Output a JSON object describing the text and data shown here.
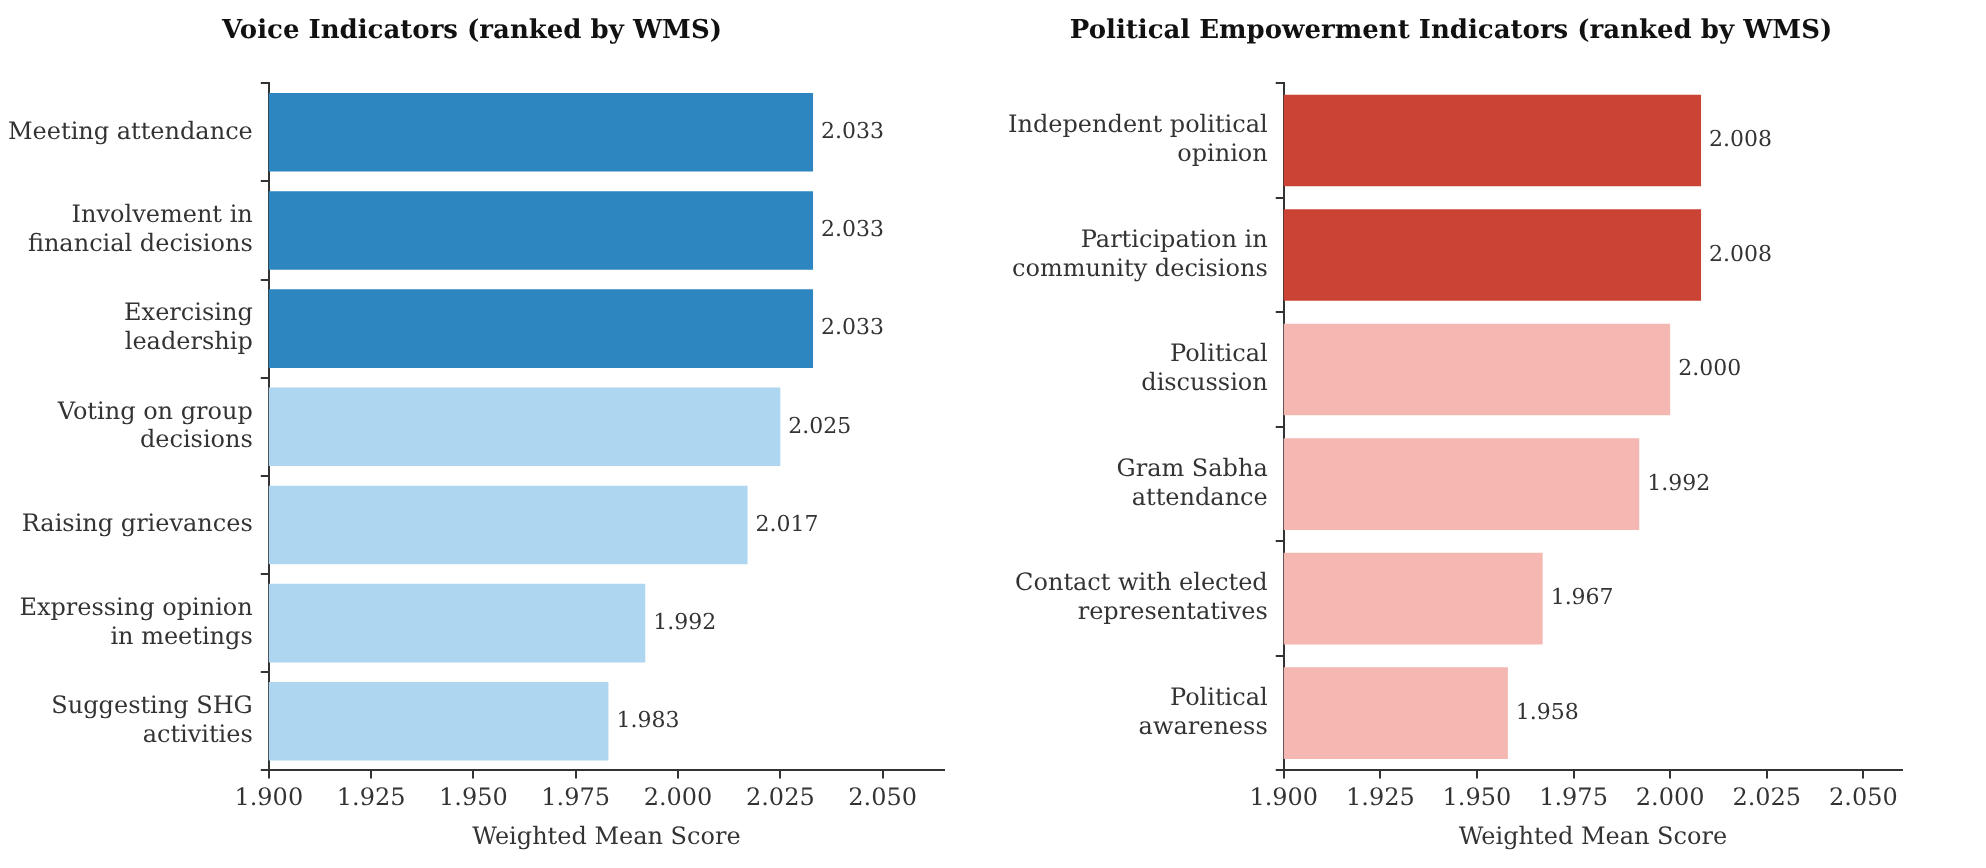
{
  "chart_data": [
    {
      "type": "bar",
      "orientation": "horizontal",
      "title": "Voice Indicators (ranked by WMS)",
      "xlabel": "Weighted Mean Score",
      "categories": [
        "Meeting attendance",
        "Involvement in\nfinancial decisions",
        "Exercising\nleadership",
        "Voting on group\ndecisions",
        "Raising grievances",
        "Expressing opinion\nin meetings",
        "Suggesting SHG\nactivities"
      ],
      "values": [
        2.033,
        2.033,
        2.033,
        2.025,
        2.017,
        1.992,
        1.983
      ],
      "value_labels": [
        "2.033",
        "2.033",
        "2.033",
        "2.025",
        "2.017",
        "1.992",
        "1.983"
      ],
      "colors": [
        "#2e86c1",
        "#2e86c1",
        "#2e86c1",
        "#aed6f1",
        "#aed6f1",
        "#aed6f1",
        "#aed6f1"
      ],
      "xlim": [
        1.9,
        2.065
      ],
      "xticks": [
        {
          "value": 1.9,
          "label": "1.900"
        },
        {
          "value": 1.925,
          "label": "1.925"
        },
        {
          "value": 1.95,
          "label": "1.950"
        },
        {
          "value": 1.975,
          "label": "1.975"
        },
        {
          "value": 2.0,
          "label": "2.000"
        },
        {
          "value": 2.025,
          "label": "2.025"
        },
        {
          "value": 2.05,
          "label": "2.050"
        }
      ],
      "grid": false,
      "legend": false
    },
    {
      "type": "bar",
      "orientation": "horizontal",
      "title": "Political Empowerment Indicators (ranked by WMS)",
      "xlabel": "Weighted Mean Score",
      "categories": [
        "Independent political\nopinion",
        "Participation in\ncommunity decisions",
        "Political\ndiscussion",
        "Gram Sabha\nattendance",
        "Contact with elected\nrepresentatives",
        "Political\nawareness"
      ],
      "values": [
        2.008,
        2.008,
        2.0,
        1.992,
        1.967,
        1.958
      ],
      "value_labels": [
        "2.008",
        "2.008",
        "2.000",
        "1.992",
        "1.967",
        "1.958"
      ],
      "colors": [
        "#cb4335",
        "#cb4335",
        "#f5b7b1",
        "#f5b7b1",
        "#f5b7b1",
        "#f5b7b1"
      ],
      "xlim": [
        1.9,
        2.06
      ],
      "xticks": [
        {
          "value": 1.9,
          "label": "1.900"
        },
        {
          "value": 1.925,
          "label": "1.925"
        },
        {
          "value": 1.95,
          "label": "1.950"
        },
        {
          "value": 1.975,
          "label": "1.975"
        },
        {
          "value": 2.0,
          "label": "2.000"
        },
        {
          "value": 2.025,
          "label": "2.025"
        },
        {
          "value": 2.05,
          "label": "2.050"
        }
      ],
      "grid": false,
      "legend": false
    }
  ]
}
